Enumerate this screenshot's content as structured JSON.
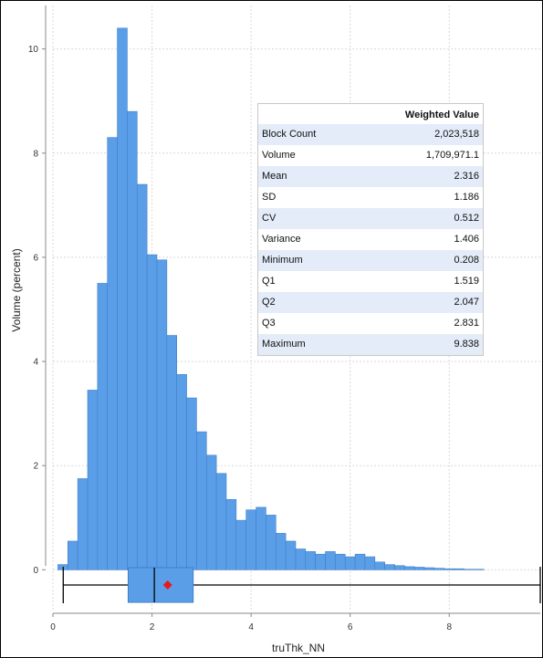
{
  "chart_data": {
    "type": "bar",
    "xlabel": "truThk_NN",
    "ylabel": "Volume (percent)",
    "xlim": [
      0,
      9.838
    ],
    "ylim": [
      -0.8,
      10.8
    ],
    "x_ticks": [
      0,
      2,
      4,
      6,
      8
    ],
    "y_ticks": [
      0,
      2,
      4,
      6,
      8,
      10
    ],
    "grid": true,
    "bar_color": "#5b9ee8",
    "bin_width": 0.2,
    "bins_start": [
      0.1,
      0.3,
      0.5,
      0.7,
      0.9,
      1.1,
      1.3,
      1.5,
      1.7,
      1.9,
      2.1,
      2.3,
      2.5,
      2.7,
      2.9,
      3.1,
      3.3,
      3.5,
      3.7,
      3.9,
      4.1,
      4.3,
      4.5,
      4.7,
      4.9,
      5.1,
      5.3,
      5.5,
      5.7,
      5.9,
      6.1,
      6.3,
      6.5,
      6.7,
      6.9,
      7.1,
      7.3,
      7.5,
      7.7,
      7.9,
      8.1,
      8.3,
      8.5,
      8.7,
      8.9,
      9.1,
      9.3,
      9.5,
      9.7
    ],
    "values": [
      0.1,
      0.55,
      1.75,
      3.45,
      5.5,
      8.3,
      10.4,
      8.8,
      7.4,
      6.05,
      5.95,
      4.5,
      3.75,
      3.3,
      2.65,
      2.2,
      1.85,
      1.35,
      0.95,
      1.15,
      1.2,
      1.05,
      0.7,
      0.55,
      0.4,
      0.35,
      0.3,
      0.35,
      0.3,
      0.25,
      0.3,
      0.25,
      0.15,
      0.1,
      0.08,
      0.06,
      0.05,
      0.04,
      0.03,
      0.02,
      0.02,
      0.01,
      0.01,
      0.0,
      0.0,
      0.0,
      0.0,
      0.0,
      0.0
    ],
    "boxplot": {
      "min": 0.208,
      "q1": 1.519,
      "median": 2.047,
      "q3": 2.831,
      "max": 9.838,
      "mean": 2.316,
      "box_color": "#5b9ee8",
      "mean_color": "#e31a1c"
    }
  },
  "stats_table": {
    "header": "Weighted Value",
    "rows": [
      {
        "label": "Block Count",
        "value": "2,023,518"
      },
      {
        "label": "Volume",
        "value": "1,709,971.1"
      },
      {
        "label": "Mean",
        "value": "2.316"
      },
      {
        "label": "SD",
        "value": "1.186"
      },
      {
        "label": "CV",
        "value": "0.512"
      },
      {
        "label": "Variance",
        "value": "1.406"
      },
      {
        "label": "Minimum",
        "value": "0.208"
      },
      {
        "label": "Q1",
        "value": "1.519"
      },
      {
        "label": "Q2",
        "value": "2.047"
      },
      {
        "label": "Q3",
        "value": "2.831"
      },
      {
        "label": "Maximum",
        "value": "9.838"
      }
    ]
  }
}
